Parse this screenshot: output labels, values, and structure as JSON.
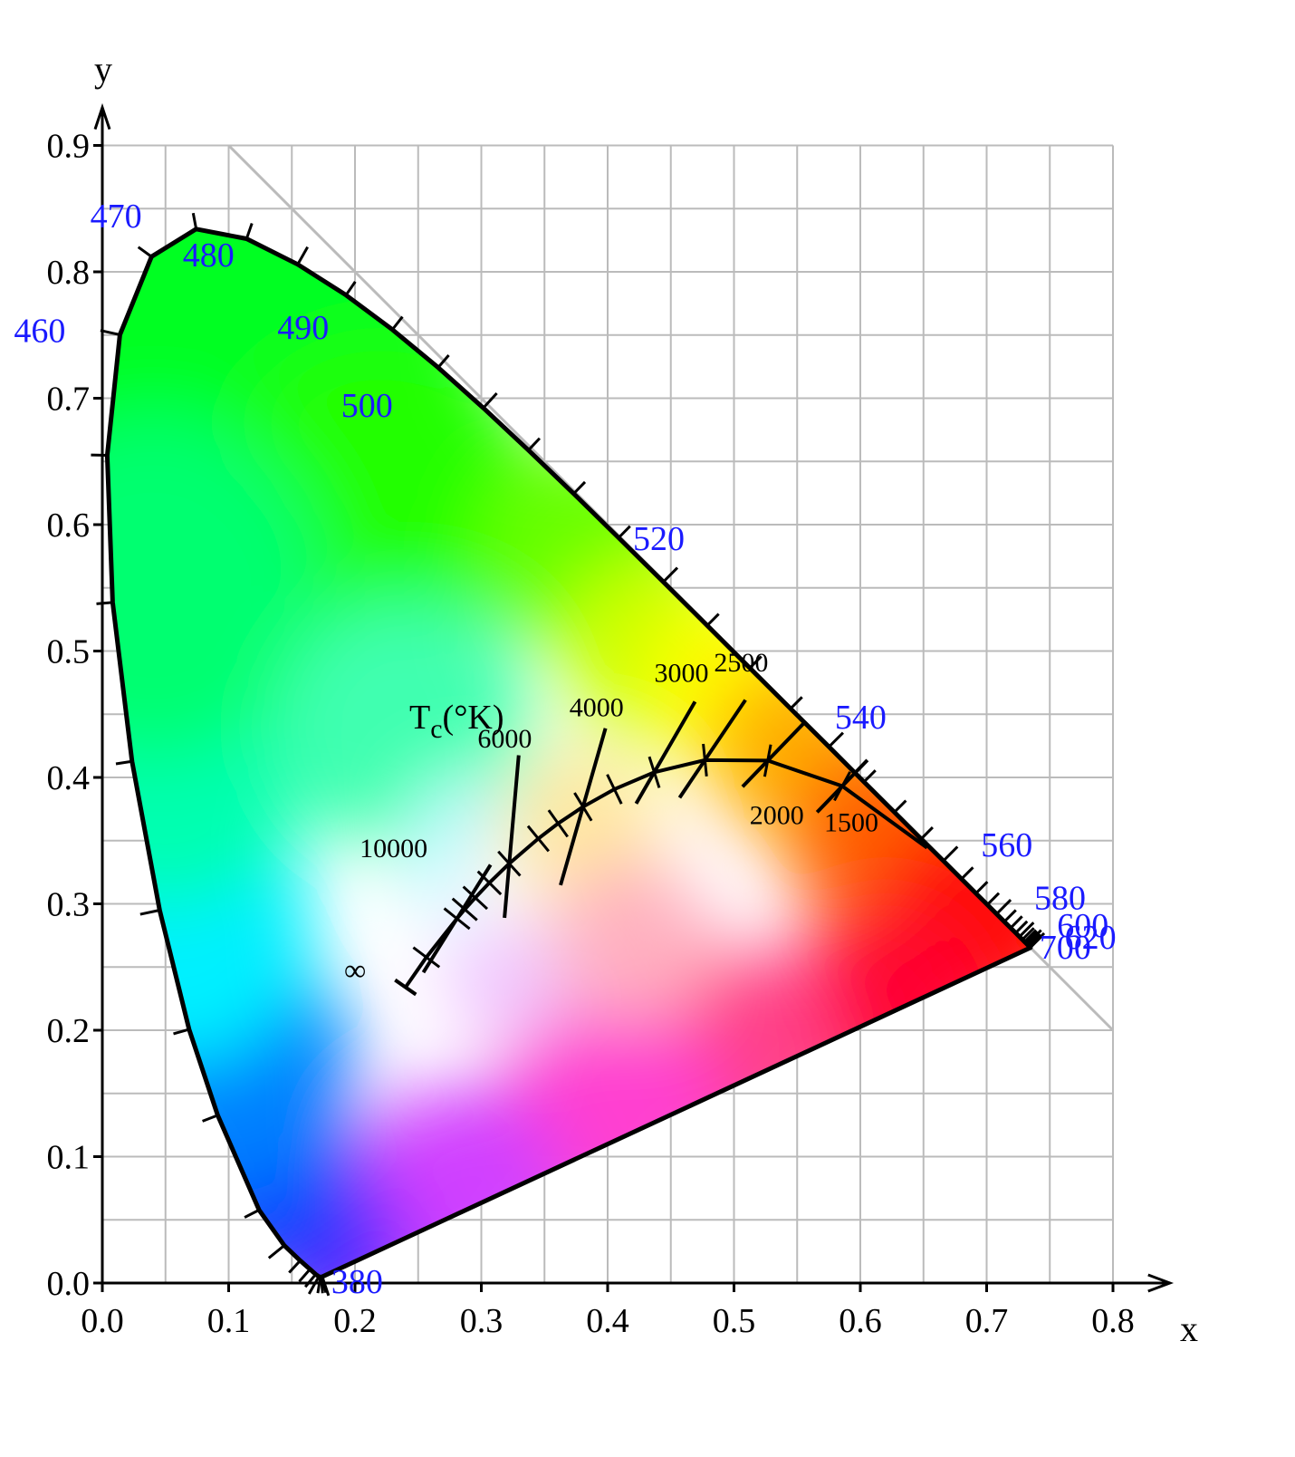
{
  "chart_data": {
    "type": "scatter",
    "title": "",
    "xlabel": "x",
    "ylabel": "y",
    "xlim": [
      0,
      0.8
    ],
    "ylim": [
      0,
      0.9
    ],
    "x_ticks": [
      "0.0",
      "0.1",
      "0.2",
      "0.3",
      "0.4",
      "0.5",
      "0.6",
      "0.7",
      "0.8"
    ],
    "y_ticks": [
      "0.0",
      "0.1",
      "0.2",
      "0.3",
      "0.4",
      "0.5",
      "0.6",
      "0.7",
      "0.8",
      "0.9"
    ],
    "grid": true,
    "series": [
      {
        "kind": "spectral-locus",
        "points": [
          [
            0.1741,
            0.005
          ],
          [
            0.1738,
            0.0049
          ],
          [
            0.1733,
            0.0048
          ],
          [
            0.1726,
            0.0048
          ],
          [
            0.1714,
            0.0051
          ],
          [
            0.1689,
            0.0069
          ],
          [
            0.1644,
            0.0109
          ],
          [
            0.1566,
            0.0177
          ],
          [
            0.144,
            0.0297
          ],
          [
            0.1241,
            0.0578
          ],
          [
            0.0913,
            0.1327
          ],
          [
            0.0687,
            0.2007
          ],
          [
            0.0454,
            0.295
          ],
          [
            0.0235,
            0.4127
          ],
          [
            0.0082,
            0.5384
          ],
          [
            0.0039,
            0.6548
          ],
          [
            0.0139,
            0.7502
          ],
          [
            0.0389,
            0.812
          ],
          [
            0.0743,
            0.8338
          ],
          [
            0.1142,
            0.8262
          ],
          [
            0.1547,
            0.8059
          ],
          [
            0.1929,
            0.7816
          ],
          [
            0.2296,
            0.7543
          ],
          [
            0.2658,
            0.7243
          ],
          [
            0.3016,
            0.6923
          ],
          [
            0.3373,
            0.6589
          ],
          [
            0.3731,
            0.6245
          ],
          [
            0.4087,
            0.5896
          ],
          [
            0.4441,
            0.5547
          ],
          [
            0.4788,
            0.5202
          ],
          [
            0.5125,
            0.4866
          ],
          [
            0.5448,
            0.4544
          ],
          [
            0.5752,
            0.4242
          ],
          [
            0.6029,
            0.3965
          ],
          [
            0.627,
            0.3725
          ],
          [
            0.6482,
            0.3514
          ],
          [
            0.6658,
            0.334
          ],
          [
            0.6801,
            0.3197
          ],
          [
            0.6915,
            0.3083
          ],
          [
            0.7006,
            0.2993
          ],
          [
            0.7079,
            0.292
          ],
          [
            0.714,
            0.2859
          ],
          [
            0.719,
            0.2809
          ],
          [
            0.723,
            0.277
          ],
          [
            0.726,
            0.274
          ],
          [
            0.7283,
            0.2717
          ],
          [
            0.73,
            0.27
          ],
          [
            0.7311,
            0.2689
          ],
          [
            0.732,
            0.268
          ],
          [
            0.7327,
            0.2673
          ],
          [
            0.7334,
            0.2666
          ],
          [
            0.734,
            0.266
          ],
          [
            0.7344,
            0.2656
          ],
          [
            0.7346,
            0.2654
          ],
          [
            0.7347,
            0.2653
          ]
        ],
        "wavelength_start": 380,
        "wavelength_step": 5
      },
      {
        "kind": "planckian-locus",
        "points": [
          [
            0.6528,
            0.3444
          ],
          [
            0.5857,
            0.3931
          ],
          [
            0.5267,
            0.4133
          ],
          [
            0.477,
            0.4137
          ],
          [
            0.4369,
            0.4041
          ],
          [
            0.4053,
            0.3907
          ],
          [
            0.3805,
            0.3768
          ],
          [
            0.3608,
            0.3636
          ],
          [
            0.3451,
            0.3516
          ],
          [
            0.3221,
            0.3318
          ],
          [
            0.3064,
            0.3166
          ],
          [
            0.2952,
            0.3048
          ],
          [
            0.2869,
            0.2956
          ],
          [
            0.2807,
            0.2883
          ],
          [
            0.2565,
            0.2577
          ],
          [
            0.24,
            0.234
          ]
        ]
      }
    ],
    "wavelength_labels": [
      {
        "text": "380",
        "nm": 380
      },
      {
        "text": "460",
        "nm": 460
      },
      {
        "text": "470",
        "nm": 470
      },
      {
        "text": "480",
        "nm": 480
      },
      {
        "text": "490",
        "nm": 490
      },
      {
        "text": "500",
        "nm": 500
      },
      {
        "text": "520",
        "nm": 520
      },
      {
        "text": "540",
        "nm": 540
      },
      {
        "text": "560",
        "nm": 560
      },
      {
        "text": "580",
        "nm": 580
      },
      {
        "text": "600",
        "nm": 600
      },
      {
        "text": "620",
        "nm": 620
      },
      {
        "text": "700",
        "nm": 700
      }
    ],
    "isotherm_label": {
      "base": "T",
      "sub": "c",
      "rest": "(°K)"
    },
    "isotherms": [
      {
        "text": "10000",
        "x": 0.2807,
        "y": 0.2883
      },
      {
        "text": "6000",
        "x": 0.3221,
        "y": 0.3318
      },
      {
        "text": "4000",
        "x": 0.3805,
        "y": 0.3768
      },
      {
        "text": "3000",
        "x": 0.4369,
        "y": 0.4041
      },
      {
        "text": "2500",
        "x": 0.477,
        "y": 0.4137
      },
      {
        "text": "2000",
        "x": 0.5267,
        "y": 0.4133
      },
      {
        "text": "1500",
        "x": 0.5857,
        "y": 0.3931
      }
    ],
    "infinity_label": "∞",
    "colors": {
      "wavelength_text": "#1a1aff",
      "grid": "#bbbbbb",
      "axis": "#000000"
    }
  }
}
